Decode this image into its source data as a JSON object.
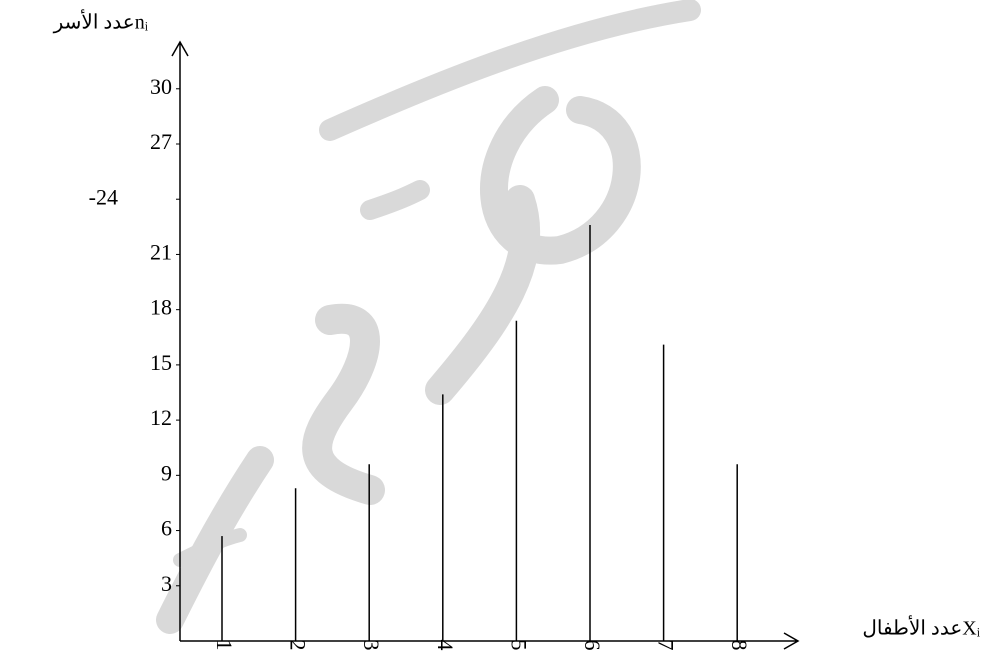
{
  "chart_data": {
    "type": "bar",
    "xlabel": "عدد الأطفالXᵢ",
    "ylabel": "عدد الأسرnᵢ",
    "categories": [
      "1",
      "2",
      "3",
      "4",
      "5",
      "6",
      "7",
      "8"
    ],
    "values": [
      5.7,
      8.3,
      9.6,
      13.4,
      17.4,
      22.6,
      16.1,
      9.6
    ],
    "color": "#000000",
    "ylim": [
      0,
      30
    ],
    "yticks": [
      3,
      6,
      9,
      12,
      15,
      18,
      21,
      {
        "value": 24,
        "label": "-24"
      },
      27,
      30
    ],
    "grid": false
  }
}
